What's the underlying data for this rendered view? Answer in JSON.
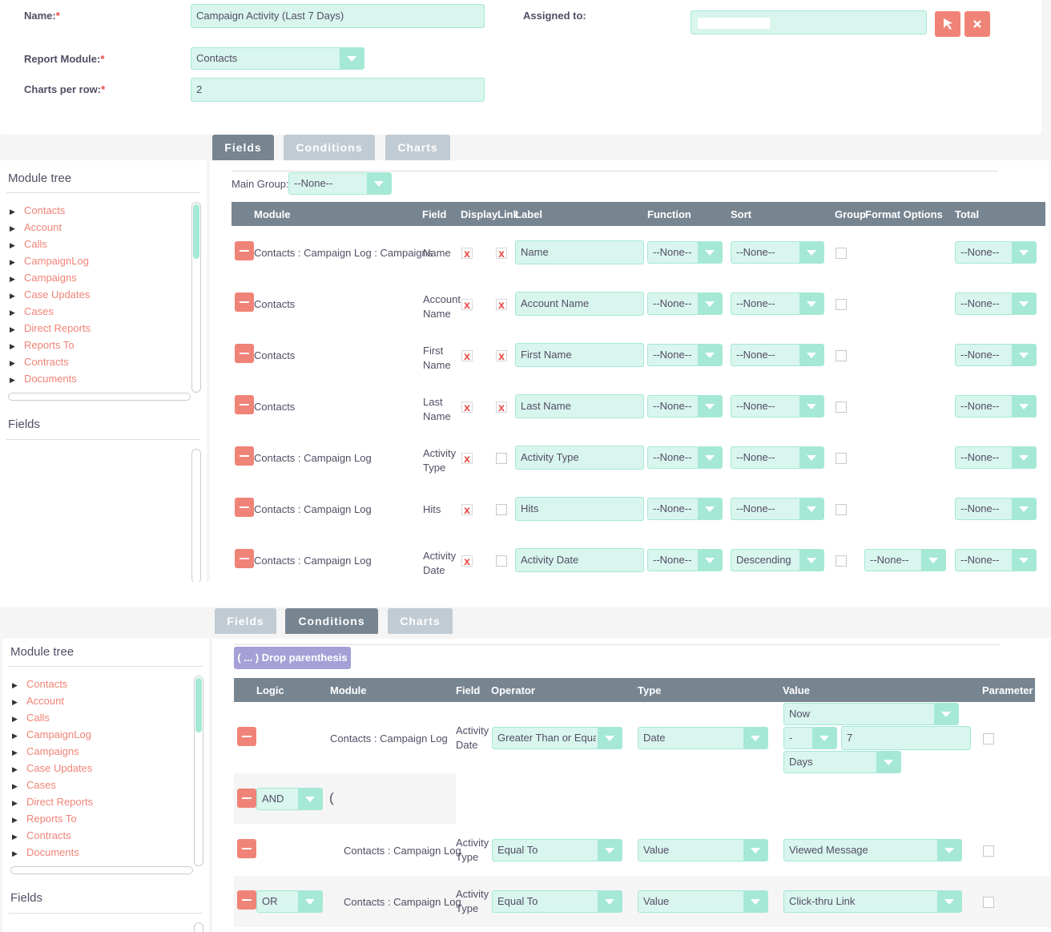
{
  "form": {
    "name_label": "Name:",
    "name_value": "Campaign Activity (Last 7 Days)",
    "report_module_label": "Report Module:",
    "report_module_value": "Contacts",
    "charts_per_row_label": "Charts per row:",
    "charts_per_row_value": "2",
    "assigned_to_label": "Assigned to:",
    "required_mark": "*"
  },
  "tabs": {
    "fields": "Fields",
    "conditions": "Conditions",
    "charts": "Charts"
  },
  "sidebar": {
    "module_tree_title": "Module tree",
    "fields_title": "Fields",
    "items": [
      "Contacts",
      "Account",
      "Calls",
      "CampaignLog",
      "Campaigns",
      "Case Updates",
      "Cases",
      "Direct Reports",
      "Reports To",
      "Contracts",
      "Documents"
    ]
  },
  "fields_panel": {
    "main_group_label": "Main Group:",
    "main_group_value": "--None--",
    "headers": {
      "module": "Module",
      "field": "Field",
      "display": "Display",
      "link": "Link",
      "label": "Label",
      "function": "Function",
      "sort": "Sort",
      "group": "Group",
      "format": "Format Options",
      "total": "Total"
    },
    "rows": [
      {
        "module": "Contacts : Campaign Log : Campaigns",
        "field": "Name",
        "label": "Name",
        "function": "--None--",
        "sort": "--None--",
        "total": "--None--",
        "link": "x"
      },
      {
        "module": "Contacts",
        "field": "Account Name",
        "label": "Account Name",
        "function": "--None--",
        "sort": "--None--",
        "total": "--None--",
        "link": "x"
      },
      {
        "module": "Contacts",
        "field": "First Name",
        "label": "First Name",
        "function": "--None--",
        "sort": "--None--",
        "total": "--None--",
        "link": "x"
      },
      {
        "module": "Contacts",
        "field": "Last Name",
        "label": "Last Name",
        "function": "--None--",
        "sort": "--None--",
        "total": "--None--",
        "link": "x"
      },
      {
        "module": "Contacts : Campaign Log",
        "field": "Activity Type",
        "label": "Activity Type",
        "function": "--None--",
        "sort": "--None--",
        "total": "--None--",
        "link": ""
      },
      {
        "module": "Contacts : Campaign Log",
        "field": "Hits",
        "label": "Hits",
        "function": "--None--",
        "sort": "--None--",
        "total": "--None--",
        "link": ""
      },
      {
        "module": "Contacts : Campaign Log",
        "field": "Activity Date",
        "label": "Activity Date",
        "function": "--None--",
        "sort": "Descending",
        "total": "--None--",
        "format": "--None--",
        "link": ""
      }
    ],
    "display_mark": "x"
  },
  "conditions_panel": {
    "drop_parenthesis": "( ... ) Drop parenthesis",
    "headers": {
      "logic": "Logic",
      "module": "Module",
      "field": "Field",
      "operator": "Operator",
      "type": "Type",
      "value": "Value",
      "parameter": "Parameter"
    },
    "row1": {
      "module": "Contacts : Campaign Log",
      "field": "Activity Date",
      "operator": "Greater Than or Equal To",
      "type": "Date",
      "value_now": "Now",
      "value_sign": "-",
      "value_num": "7",
      "value_unit": "Days"
    },
    "paren_row": {
      "logic": "AND",
      "paren": "("
    },
    "row2": {
      "module": "Contacts : Campaign Log",
      "field": "Activity Type",
      "operator": "Equal To",
      "type": "Value",
      "value": "Viewed Message"
    },
    "row3": {
      "logic": "OR",
      "module": "Contacts : Campaign Log",
      "field": "Activity Type",
      "operator": "Equal To",
      "type": "Value",
      "value": "Click-thru Link"
    }
  },
  "colors": {
    "accent": "#a5e8d6",
    "input_bg": "#d8f5ee",
    "danger": "#f08377",
    "header": "#778591",
    "link": "#f08377"
  }
}
